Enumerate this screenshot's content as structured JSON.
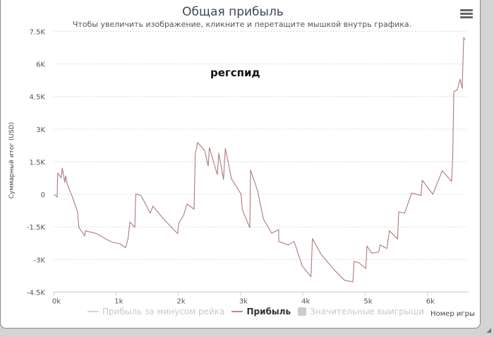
{
  "header": {
    "title": "Общая прибыль",
    "subtitle": "Чтобы увеличить изображение, кликните и перетащите мышкой внутрь графика.",
    "menu_icon": "hamburger-icon"
  },
  "chart_data": {
    "type": "line",
    "title": "Общая прибыль",
    "subtitle": "Чтобы увеличить изображение, кликните и перетащите мышкой внутрь графика.",
    "annotation": "регспид",
    "xlabel": "Номер игры",
    "ylabel": "Суммарный итог (USD)",
    "xlim": [
      0,
      6650
    ],
    "ylim": [
      -4500,
      7500
    ],
    "yticks": [
      {
        "v": 7500,
        "label": "7.5K"
      },
      {
        "v": 6000,
        "label": "6K"
      },
      {
        "v": 4500,
        "label": "4.5K"
      },
      {
        "v": 3000,
        "label": "3K"
      },
      {
        "v": 1500,
        "label": "1.5K"
      },
      {
        "v": 0,
        "label": "0"
      },
      {
        "v": -1500,
        "label": "-1.5K"
      },
      {
        "v": -3000,
        "label": "-3K"
      },
      {
        "v": -4500,
        "label": "-4.5K"
      }
    ],
    "xticks": [
      {
        "v": 0,
        "label": "0k"
      },
      {
        "v": 1000,
        "label": "1k"
      },
      {
        "v": 2000,
        "label": "2k"
      },
      {
        "v": 3000,
        "label": "3k"
      },
      {
        "v": 4000,
        "label": "4k"
      },
      {
        "v": 5000,
        "label": "5k"
      },
      {
        "v": 6000,
        "label": "6k"
      }
    ],
    "grid": true,
    "legend": [
      {
        "name": "Прибыль за минусом рейка",
        "color": "#d6d6d6",
        "kind": "line",
        "visible": false
      },
      {
        "name": "Прибыль",
        "color": "#b98a8a",
        "kind": "line",
        "visible": true
      },
      {
        "name": "Значительные выигрыши",
        "color": "#cccccc",
        "kind": "box",
        "visible": false
      }
    ],
    "series": [
      {
        "name": "Прибыль",
        "color": "#b07878",
        "points": [
          [
            8,
            0
          ],
          [
            57,
            -130
          ],
          [
            65,
            975
          ],
          [
            121,
            757
          ],
          [
            139,
            1203
          ],
          [
            178,
            553
          ],
          [
            193,
            846
          ],
          [
            215,
            488
          ],
          [
            291,
            -55
          ],
          [
            385,
            -813
          ],
          [
            404,
            -1519
          ],
          [
            498,
            -1919
          ],
          [
            510,
            -1681
          ],
          [
            687,
            -1811
          ],
          [
            872,
            -2114
          ],
          [
            951,
            -2211
          ],
          [
            1064,
            -2276
          ],
          [
            1155,
            -2462
          ],
          [
            1197,
            -2007
          ],
          [
            1223,
            -1269
          ],
          [
            1302,
            -1519
          ],
          [
            1317,
            23
          ],
          [
            1404,
            -65
          ],
          [
            1551,
            -868
          ],
          [
            1593,
            -543
          ],
          [
            1744,
            -1073
          ],
          [
            1820,
            -1301
          ],
          [
            1990,
            -1811
          ],
          [
            2008,
            -1333
          ],
          [
            2084,
            -976
          ],
          [
            2140,
            -455
          ],
          [
            2254,
            -683
          ],
          [
            2273,
            1854
          ],
          [
            2310,
            2384
          ],
          [
            2424,
            2016
          ],
          [
            2480,
            1301
          ],
          [
            2499,
            2146
          ],
          [
            2627,
            911
          ],
          [
            2650,
            1896
          ],
          [
            2726,
            683
          ],
          [
            2755,
            2114
          ],
          [
            2854,
            715
          ],
          [
            3009,
            0
          ],
          [
            3027,
            -706
          ],
          [
            3148,
            -1538
          ],
          [
            3160,
            1115
          ],
          [
            3273,
            163
          ],
          [
            3367,
            -1138
          ],
          [
            3499,
            -1789
          ],
          [
            3613,
            -1626
          ],
          [
            3613,
            -2169
          ],
          [
            3763,
            -2332
          ],
          [
            3858,
            -2169
          ],
          [
            3990,
            -3307
          ],
          [
            4130,
            -3795
          ],
          [
            4153,
            -2039
          ],
          [
            4292,
            -2764
          ],
          [
            4499,
            -3470
          ],
          [
            4669,
            -3958
          ],
          [
            4802,
            -4032
          ],
          [
            4821,
            -3089
          ],
          [
            4896,
            -3145
          ],
          [
            5009,
            -3415
          ],
          [
            5028,
            -2384
          ],
          [
            5104,
            -2709
          ],
          [
            5217,
            -2657
          ],
          [
            5236,
            -2332
          ],
          [
            5349,
            -2494
          ],
          [
            5387,
            -1681
          ],
          [
            5519,
            -2059
          ],
          [
            5538,
            -813
          ],
          [
            5632,
            -868
          ],
          [
            5745,
            55
          ],
          [
            5897,
            -55
          ],
          [
            5915,
            650
          ],
          [
            6085,
            0
          ],
          [
            6237,
            1083
          ],
          [
            6387,
            595
          ],
          [
            6406,
            1789
          ],
          [
            6421,
            4715
          ],
          [
            6478,
            4813
          ],
          [
            6523,
            5300
          ],
          [
            6557,
            4878
          ],
          [
            6580,
            7220
          ],
          [
            6602,
            7120
          ]
        ]
      }
    ]
  }
}
